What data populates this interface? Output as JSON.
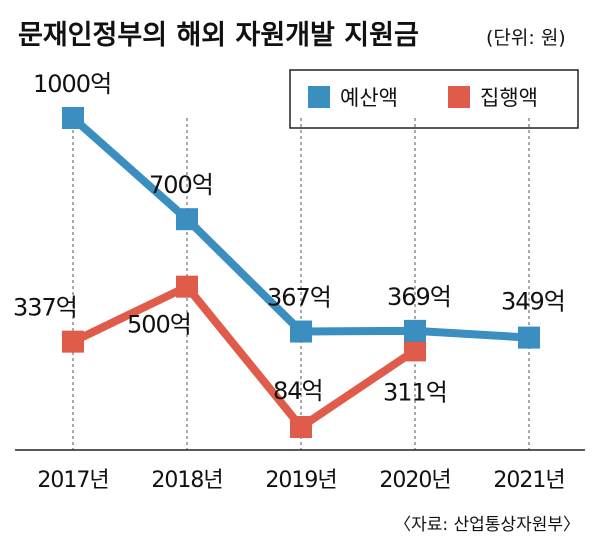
{
  "title": "문재인정부의 해외 자원개발 지원금",
  "unit": "(단위: 원)",
  "source": "〈자료: 산업통상자원부〉",
  "chart_data": {
    "type": "line",
    "x": [
      "2017년",
      "2018년",
      "2019년",
      "2020년",
      "2021년"
    ],
    "series": [
      {
        "name": "예산액",
        "color": "#3a8ec0",
        "values": [
          1000,
          700,
          367,
          369,
          349
        ],
        "labels": [
          "1000억",
          "700억",
          "367억",
          "369억",
          "349억"
        ]
      },
      {
        "name": "집행액",
        "color": "#e05c4a",
        "values": [
          337,
          500,
          84,
          311,
          null
        ],
        "labels": [
          "337억",
          "500억",
          "84억",
          "311억",
          null
        ]
      }
    ],
    "ylim": [
      0,
      1100
    ],
    "grid": "vertical dashed",
    "legend_position": "top-right"
  }
}
